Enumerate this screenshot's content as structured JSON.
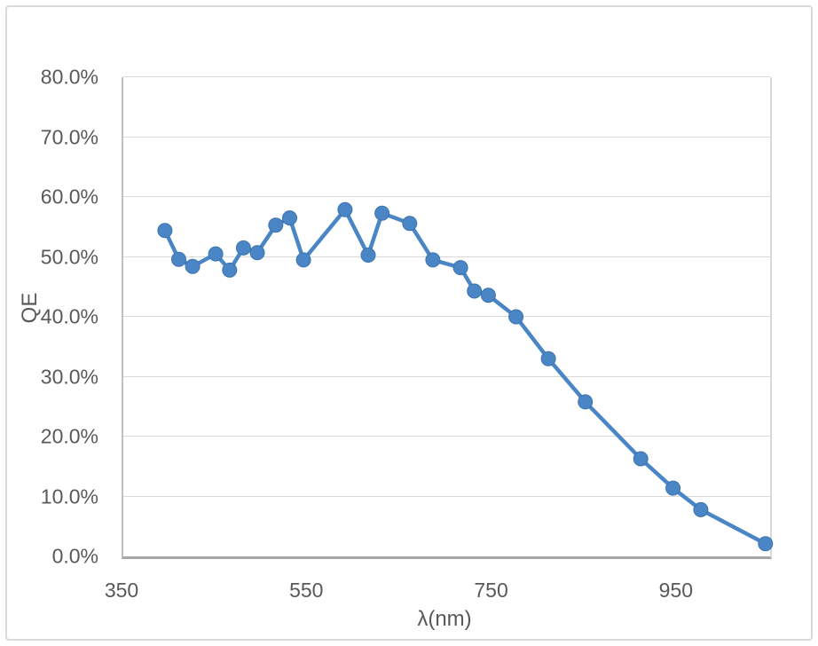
{
  "chart_data": {
    "type": "line",
    "title": "",
    "xlabel": "λ(nm)",
    "ylabel": "QE",
    "xlim": [
      350,
      1050
    ],
    "ylim": [
      0,
      80
    ],
    "x_ticks": [
      350,
      550,
      750,
      950
    ],
    "x_tick_labels": [
      "350",
      "550",
      "750",
      "950"
    ],
    "y_ticks": [
      80,
      70,
      60,
      50,
      40,
      30,
      20,
      10,
      0
    ],
    "y_tick_labels": [
      "80.0%",
      "70.0%",
      "60.0%",
      "50.0%",
      "40.0%",
      "30.0%",
      "20.0%",
      "10.0%",
      "0.0%"
    ],
    "grid": "horizontal",
    "legend": "none",
    "series": [
      {
        "name": "QE",
        "x": [
          395,
          410,
          425,
          450,
          465,
          480,
          495,
          515,
          530,
          545,
          590,
          615,
          630,
          660,
          685,
          715,
          730,
          745,
          775,
          810,
          850,
          910,
          945,
          975,
          1045
        ],
        "y_percent": [
          54.4,
          49.6,
          48.4,
          50.5,
          47.8,
          51.5,
          50.7,
          55.3,
          56.5,
          49.5,
          57.9,
          50.3,
          57.3,
          55.6,
          49.5,
          48.2,
          44.3,
          43.6,
          40.0,
          33.0,
          25.8,
          16.3,
          11.4,
          7.8,
          2.1
        ],
        "marker": "circle"
      }
    ]
  },
  "colors": {
    "background": "#ffffff",
    "frame_border": "#d9d9d9",
    "gridline": "#d9d9d9",
    "x_axis_line": "#a6a6a6",
    "y_axis_line": "#bfbfbf",
    "tick_text": "#595959",
    "series_line": "#4a86c6",
    "marker_fill": "#4a86c6",
    "marker_stroke": "#3d74ae"
  }
}
